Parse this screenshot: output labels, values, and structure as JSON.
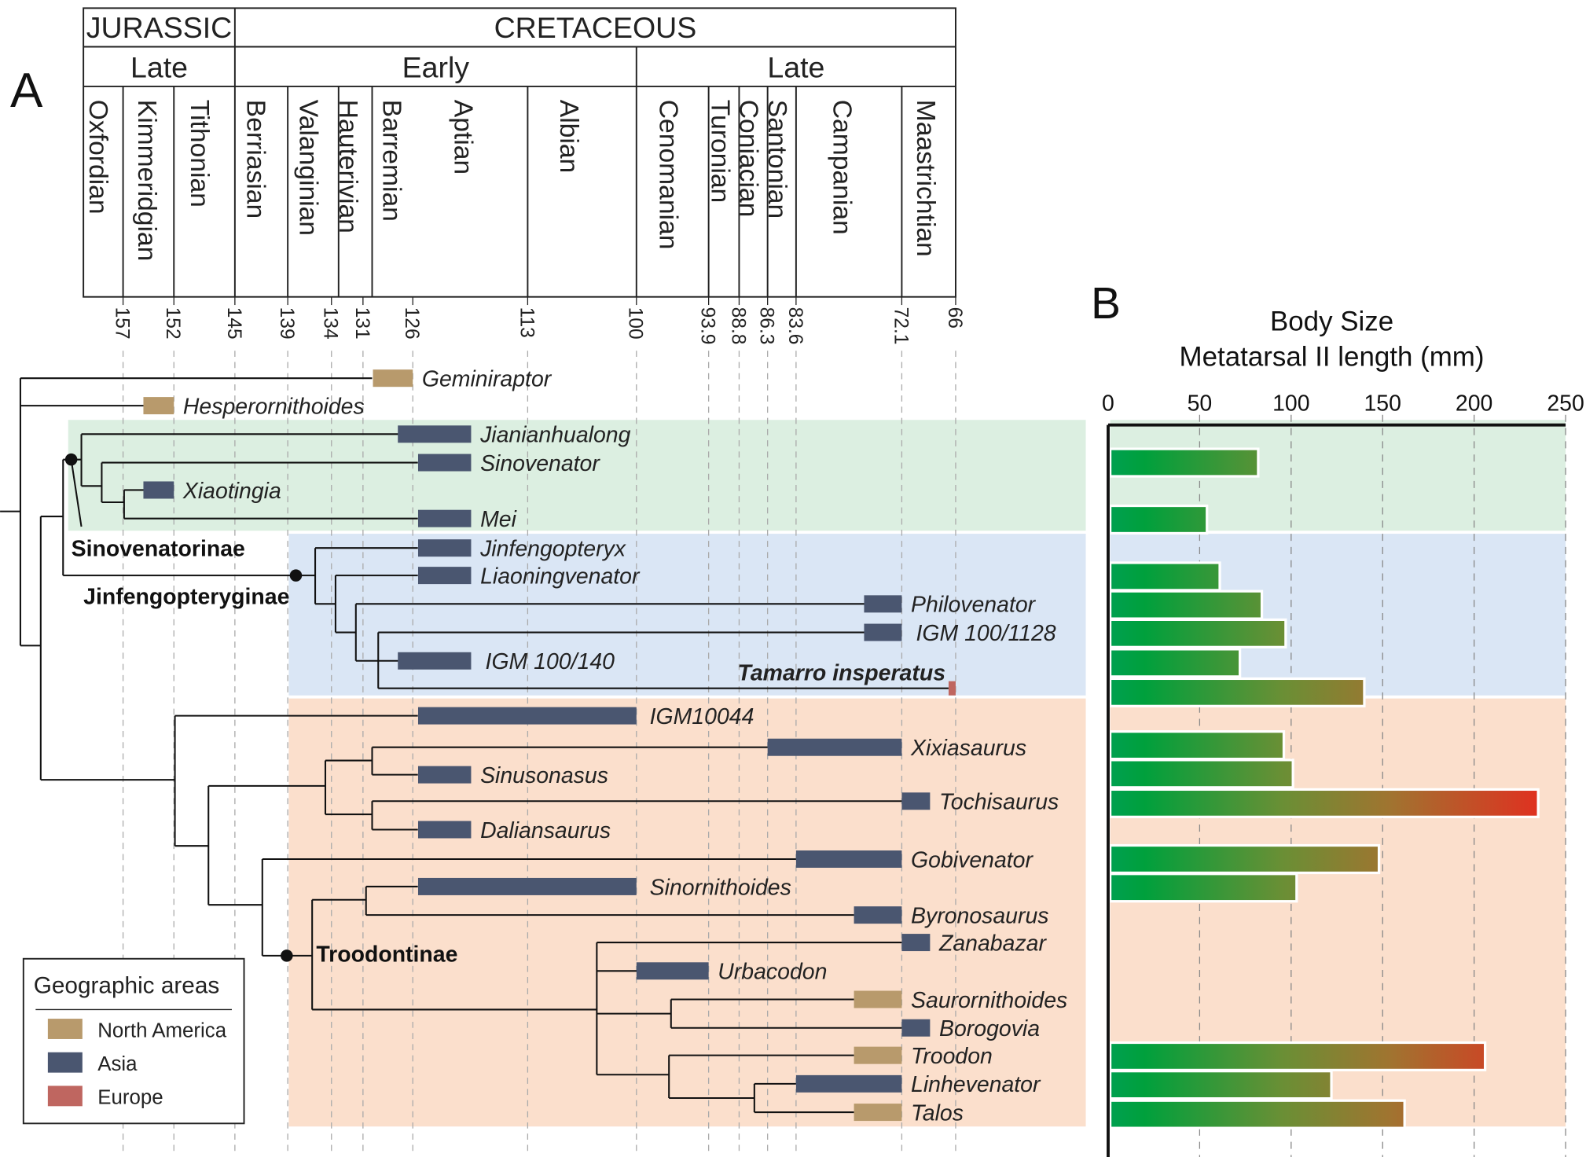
{
  "panel_labels": {
    "a": "A",
    "b": "B"
  },
  "timescale": {
    "periods": [
      {
        "label": "JURASSIC",
        "from": 161,
        "to": 145
      },
      {
        "label": "CRETACEOUS",
        "from": 145,
        "to": 66
      }
    ],
    "epochs": [
      {
        "label": "Late",
        "from": 161,
        "to": 145
      },
      {
        "label": "Early",
        "from": 145,
        "to": 100
      },
      {
        "label": "Late",
        "from": 100,
        "to": 66
      }
    ],
    "stages": [
      "Oxfordian",
      "Kimmeridgian",
      "Tithonian",
      "Berriasian",
      "Valanginian",
      "Hauterivian",
      "Barremian",
      "Aptian",
      "Albian",
      "Cenomanian",
      "Turonian",
      "Coniacian",
      "Santonian",
      "Campanian",
      "Maastrichtian"
    ],
    "ticks": [
      "157",
      "152",
      "145",
      "139",
      "134",
      "131",
      "126",
      "113",
      "100",
      "93.9",
      "88.8",
      "86.3",
      "83.6",
      "72.1",
      "66"
    ]
  },
  "region_colors": {
    "North America": "#b89a6c",
    "Asia": "#4a5670",
    "Europe": "#bf6660"
  },
  "clade_colors": {
    "Sinovenatorinae": "#dcefe1",
    "Jinfengopteryginae": "#dae6f5",
    "Troodontinae": "#fbdfcc"
  },
  "clades": [
    "Sinovenatorinae",
    "Jinfengopteryginae",
    "Troodontinae"
  ],
  "taxa": [
    {
      "name": "Geminiraptor",
      "region": "North America",
      "range_ma": [
        130,
        126
      ]
    },
    {
      "name": "Hesperornithoides",
      "region": "North America",
      "range_ma": [
        155,
        152
      ]
    },
    {
      "name": "Jianianhualong",
      "region": "Asia",
      "range_ma": [
        127.5,
        119.4
      ]
    },
    {
      "name": "Sinovenator",
      "region": "Asia",
      "range_ma": [
        125.4,
        119.4
      ]
    },
    {
      "name": "Xiaotingia",
      "region": "Asia",
      "range_ma": [
        155,
        152
      ]
    },
    {
      "name": "Mei",
      "region": "Asia",
      "range_ma": [
        125.4,
        119.4
      ]
    },
    {
      "name": "Jinfengopteryx",
      "region": "Asia",
      "range_ma": [
        125.4,
        119.4
      ]
    },
    {
      "name": "Liaoningvenator",
      "region": "Asia",
      "range_ma": [
        125.4,
        119.4
      ]
    },
    {
      "name": "Philovenator",
      "region": "Asia",
      "range_ma": [
        76.2,
        72.1
      ]
    },
    {
      "name": "IGM 100/1128",
      "region": "Asia",
      "range_ma": [
        76.2,
        72.1
      ]
    },
    {
      "name": "IGM 100/140",
      "region": "Asia",
      "range_ma": [
        127.5,
        119.4
      ]
    },
    {
      "name": "Tamarro insperatus",
      "region": "Europe",
      "range_ma": [
        66.8,
        66
      ]
    },
    {
      "name": "IGM10044",
      "region": "Asia",
      "range_ma": [
        125.4,
        100
      ]
    },
    {
      "name": "Xixiasaurus",
      "region": "Asia",
      "range_ma": [
        86.3,
        72.1
      ]
    },
    {
      "name": "Sinusonasus",
      "region": "Asia",
      "range_ma": [
        125.4,
        119.4
      ]
    },
    {
      "name": "Tochisaurus",
      "region": "Asia",
      "range_ma": [
        72.1,
        68.9
      ]
    },
    {
      "name": "Daliansaurus",
      "region": "Asia",
      "range_ma": [
        125.4,
        119.4
      ]
    },
    {
      "name": "Gobivenator",
      "region": "Asia",
      "range_ma": [
        83.6,
        72.1
      ]
    },
    {
      "name": "Sinornithoides",
      "region": "Asia",
      "range_ma": [
        125.4,
        100
      ]
    },
    {
      "name": "Byronosaurus",
      "region": "Asia",
      "range_ma": [
        77.3,
        72.1
      ]
    },
    {
      "name": "Zanabazar",
      "region": "Asia",
      "range_ma": [
        72.1,
        68.9
      ]
    },
    {
      "name": "Urbacodon",
      "region": "Asia",
      "range_ma": [
        100,
        93.9
      ]
    },
    {
      "name": "Saurornithoides",
      "region": "North America",
      "range_ma": [
        77.3,
        72.1
      ]
    },
    {
      "name": "Borogovia",
      "region": "Asia",
      "range_ma": [
        72.1,
        68.9
      ]
    },
    {
      "name": "Troodon",
      "region": "North America",
      "range_ma": [
        77.3,
        72.1
      ]
    },
    {
      "name": "Linhevenator",
      "region": "Asia",
      "range_ma": [
        83.6,
        72.1
      ]
    },
    {
      "name": "Talos",
      "region": "North America",
      "range_ma": [
        77.3,
        72.1
      ]
    }
  ],
  "legend": {
    "title": "Geographic areas",
    "items": [
      "North America",
      "Asia",
      "Europe"
    ]
  },
  "chart_data": {
    "type": "bar",
    "orientation": "horizontal",
    "title": "Body Size",
    "subtitle": "Metatarsal II length (mm)",
    "xlim": [
      0,
      250
    ],
    "xticks": [
      "0",
      "50",
      "100",
      "150",
      "200",
      "250"
    ],
    "grid": "dashed vertical",
    "color_gradient": [
      "#00a040",
      "#e03020"
    ],
    "categories": [
      "Sinovenator",
      "Mei",
      "Jinfengopteryx",
      "Liaoningvenator",
      "Philovenator",
      "IGM 100/1128",
      "Tamarro insperatus",
      "Xixiasaurus",
      "Sinusonasus",
      "Tochisaurus",
      "Gobivenator",
      "Sinornithoides",
      "Troodon",
      "Linhevenator",
      "Talos"
    ],
    "values": [
      82,
      54,
      61,
      84,
      97,
      72,
      140,
      96,
      101,
      235,
      148,
      103,
      206,
      122,
      162
    ]
  }
}
